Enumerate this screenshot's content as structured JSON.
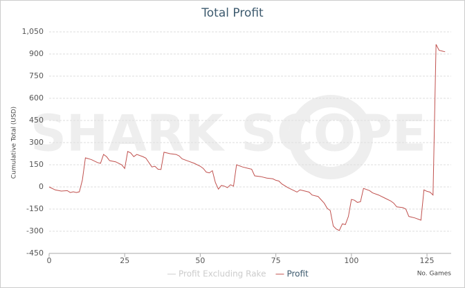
{
  "chart_data": {
    "type": "line",
    "title": "Total Profit",
    "watermark": "SHARK SCOPE",
    "x_label": "No. Games",
    "y_label": "Cumulative Total (USD)",
    "x": [
      0,
      2,
      4,
      6,
      7,
      8,
      9,
      10,
      11,
      12,
      14,
      16,
      17,
      18,
      19,
      20,
      22,
      24,
      25,
      26,
      27,
      28,
      29,
      31,
      32,
      34,
      35,
      36,
      37,
      38,
      40,
      42,
      43,
      44,
      46,
      48,
      50,
      51,
      52,
      53,
      54,
      55,
      56,
      57,
      58,
      59,
      60,
      61,
      62,
      64,
      66,
      67,
      68,
      70,
      72,
      74,
      75,
      76,
      77,
      79,
      81,
      82,
      83,
      85,
      86,
      87,
      89,
      91,
      92,
      93,
      94,
      95,
      96,
      97,
      98,
      99,
      100,
      101,
      102,
      103,
      104,
      106,
      107,
      109,
      111,
      113,
      114,
      115,
      117,
      118,
      119,
      121,
      123,
      124,
      125,
      126,
      127,
      128,
      129,
      130,
      131
    ],
    "series": [
      {
        "name": "Profit Excluding Rake",
        "color": "#cccccc",
        "hidden": true
      },
      {
        "name": "Profit",
        "color": "#c0504d",
        "values": [
          0,
          -20,
          -28,
          -25,
          -38,
          -33,
          -38,
          -33,
          47,
          197,
          185,
          165,
          160,
          220,
          205,
          178,
          170,
          150,
          125,
          240,
          230,
          205,
          220,
          205,
          195,
          135,
          140,
          120,
          118,
          235,
          225,
          220,
          210,
          190,
          175,
          160,
          140,
          125,
          100,
          95,
          110,
          30,
          -15,
          10,
          5,
          -5,
          15,
          5,
          150,
          135,
          125,
          120,
          75,
          70,
          60,
          55,
          45,
          40,
          20,
          -5,
          -25,
          -35,
          -20,
          -30,
          -35,
          -55,
          -65,
          -110,
          -145,
          -160,
          -265,
          -285,
          -295,
          -250,
          -255,
          -200,
          -85,
          -90,
          -105,
          -100,
          -10,
          -25,
          -40,
          -55,
          -75,
          -95,
          -110,
          -135,
          -140,
          -150,
          -200,
          -210,
          -225,
          -20,
          -30,
          -35,
          -55,
          965,
          925,
          920,
          915
        ]
      }
    ],
    "xlim": [
      0,
      133
    ],
    "xticks": [
      0,
      25,
      50,
      75,
      100,
      125
    ],
    "ylim": [
      -450,
      1050
    ],
    "yticks": [
      {
        "value": 1050,
        "label": "1,050"
      },
      900,
      750,
      600,
      450,
      300,
      150,
      0,
      -150,
      -300,
      -450
    ],
    "grid": true
  }
}
